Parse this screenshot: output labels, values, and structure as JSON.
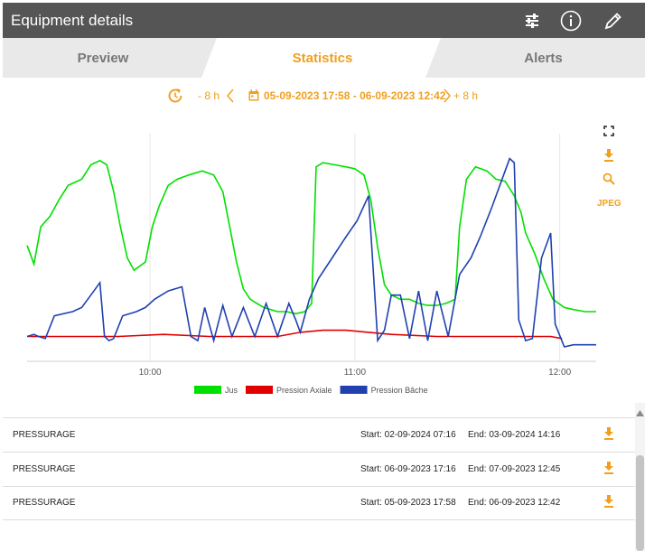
{
  "header": {
    "title": "Equipment details"
  },
  "tabs": [
    {
      "label": "Preview",
      "active": false
    },
    {
      "label": "Statistics",
      "active": true
    },
    {
      "label": "Alerts",
      "active": false
    }
  ],
  "range_nav": {
    "back_label": "- 8 h",
    "range_label": "05-09-2023 17:58 - 06-09-2023 12:42",
    "forward_label": "+ 8 h"
  },
  "chart_tools": {
    "jpeg_label": "JPEG"
  },
  "chart_data": {
    "type": "line",
    "x_ticks": [
      "10:00",
      "11:00",
      "12:00"
    ],
    "series": [
      {
        "name": "Jus",
        "color": "#00e000",
        "values": [
          [
            0,
            46
          ],
          [
            3,
            37
          ],
          [
            6,
            55
          ],
          [
            10,
            60
          ],
          [
            14,
            68
          ],
          [
            18,
            75
          ],
          [
            24,
            78
          ],
          [
            28,
            85
          ],
          [
            32,
            87
          ],
          [
            35,
            85
          ],
          [
            38,
            72
          ],
          [
            41,
            55
          ],
          [
            44,
            40
          ],
          [
            47,
            34
          ],
          [
            52,
            38
          ],
          [
            55,
            55
          ],
          [
            58,
            65
          ],
          [
            62,
            75
          ],
          [
            66,
            78
          ],
          [
            71,
            80
          ],
          [
            77,
            82
          ],
          [
            82,
            80
          ],
          [
            86,
            72
          ],
          [
            89,
            55
          ],
          [
            92,
            38
          ],
          [
            95,
            25
          ],
          [
            98,
            20
          ],
          [
            101,
            18
          ],
          [
            104,
            16
          ],
          [
            107,
            15
          ],
          [
            110,
            14
          ],
          [
            114,
            14
          ],
          [
            118,
            13
          ],
          [
            122,
            14
          ],
          [
            125,
            18
          ],
          [
            127,
            84
          ],
          [
            130,
            86
          ],
          [
            135,
            85
          ],
          [
            140,
            84
          ],
          [
            144,
            83
          ],
          [
            148,
            80
          ],
          [
            151,
            68
          ],
          [
            154,
            45
          ],
          [
            157,
            27
          ],
          [
            160,
            22
          ],
          [
            164,
            20
          ],
          [
            168,
            20
          ],
          [
            172,
            18
          ],
          [
            176,
            17
          ],
          [
            180,
            17
          ],
          [
            184,
            18
          ],
          [
            188,
            20
          ],
          [
            190,
            55
          ],
          [
            193,
            78
          ],
          [
            197,
            84
          ],
          [
            202,
            82
          ],
          [
            206,
            78
          ],
          [
            210,
            77
          ],
          [
            214,
            70
          ],
          [
            217,
            62
          ],
          [
            219,
            52
          ],
          [
            223,
            42
          ],
          [
            227,
            30
          ],
          [
            231,
            20
          ],
          [
            236,
            16
          ],
          [
            240,
            15
          ],
          [
            245,
            14
          ],
          [
            250,
            14
          ]
        ]
      },
      {
        "name": "Pression Axiale",
        "color": "#e00000",
        "values": [
          [
            0,
            2
          ],
          [
            20,
            2
          ],
          [
            40,
            2
          ],
          [
            60,
            3
          ],
          [
            80,
            2
          ],
          [
            100,
            2
          ],
          [
            110,
            2
          ],
          [
            120,
            4
          ],
          [
            130,
            5
          ],
          [
            140,
            5
          ],
          [
            150,
            4
          ],
          [
            160,
            3
          ],
          [
            180,
            2
          ],
          [
            200,
            2
          ],
          [
            220,
            2
          ],
          [
            230,
            2
          ],
          [
            235,
            1
          ]
        ]
      },
      {
        "name": "Pression Bâche",
        "color": "#2040b0",
        "values": [
          [
            0,
            2
          ],
          [
            3,
            3
          ],
          [
            5,
            2
          ],
          [
            8,
            1
          ],
          [
            12,
            12
          ],
          [
            20,
            14
          ],
          [
            24,
            16
          ],
          [
            28,
            22
          ],
          [
            32,
            28
          ],
          [
            34,
            2
          ],
          [
            36,
            0
          ],
          [
            38,
            1
          ],
          [
            42,
            12
          ],
          [
            48,
            14
          ],
          [
            52,
            16
          ],
          [
            56,
            20
          ],
          [
            62,
            24
          ],
          [
            68,
            26
          ],
          [
            72,
            2
          ],
          [
            75,
            0
          ],
          [
            78,
            16
          ],
          [
            82,
            0
          ],
          [
            86,
            17
          ],
          [
            90,
            2
          ],
          [
            95,
            16
          ],
          [
            100,
            2
          ],
          [
            105,
            18
          ],
          [
            110,
            2
          ],
          [
            115,
            18
          ],
          [
            118,
            10
          ],
          [
            120,
            4
          ],
          [
            124,
            20
          ],
          [
            128,
            30
          ],
          [
            134,
            40
          ],
          [
            140,
            50
          ],
          [
            145,
            58
          ],
          [
            150,
            70
          ],
          [
            154,
            0
          ],
          [
            157,
            5
          ],
          [
            160,
            22
          ],
          [
            164,
            22
          ],
          [
            168,
            1
          ],
          [
            172,
            24
          ],
          [
            176,
            0
          ],
          [
            180,
            24
          ],
          [
            185,
            2
          ],
          [
            190,
            32
          ],
          [
            195,
            40
          ],
          [
            199,
            50
          ],
          [
            204,
            64
          ],
          [
            210,
            82
          ],
          [
            212,
            88
          ],
          [
            214,
            86
          ],
          [
            216,
            10
          ],
          [
            219,
            0
          ],
          [
            222,
            1
          ],
          [
            226,
            40
          ],
          [
            230,
            52
          ],
          [
            232,
            8
          ],
          [
            236,
            -3
          ],
          [
            240,
            -2
          ],
          [
            250,
            -2
          ]
        ]
      }
    ],
    "ylim": [
      -10,
      100
    ],
    "legend": "bottom-center"
  },
  "rows": [
    {
      "name": "PRESSURAGE",
      "start": "Start: 02-09-2024 07:16",
      "end": "End: 03-09-2024 14:16"
    },
    {
      "name": "PRESSURAGE",
      "start": "Start: 06-09-2023 17:16",
      "end": "End: 07-09-2023 12:45"
    },
    {
      "name": "PRESSURAGE",
      "start": "Start: 05-09-2023 17:58",
      "end": "End: 06-09-2023 12:42"
    }
  ]
}
